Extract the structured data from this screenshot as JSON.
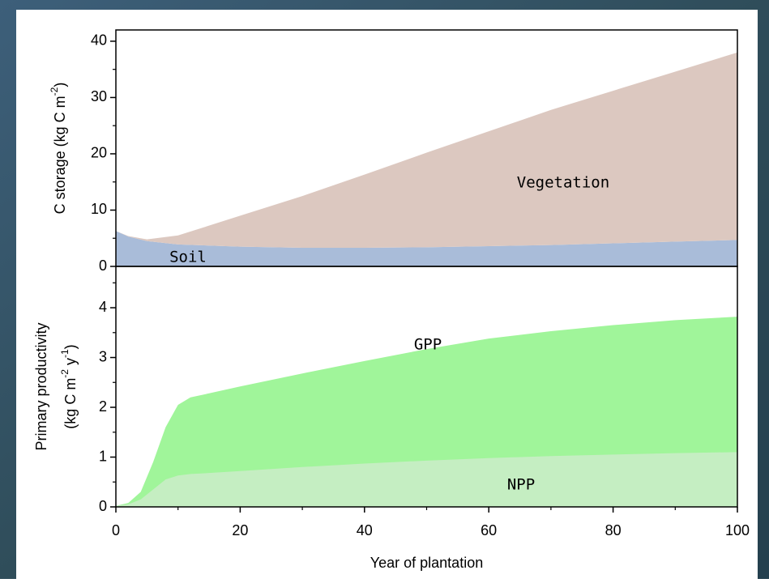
{
  "chart_data": [
    {
      "type": "area",
      "stacked": true,
      "ylabel": [
        "C storage (kg C m",
        "-2",
        ")"
      ],
      "x": [
        0,
        2,
        5,
        10,
        20,
        30,
        40,
        50,
        60,
        70,
        80,
        90,
        100
      ],
      "series": [
        {
          "name": "Soil",
          "color": "#a9bcd9",
          "values": [
            6.3,
            5.3,
            4.5,
            3.9,
            3.5,
            3.3,
            3.3,
            3.4,
            3.6,
            3.8,
            4.1,
            4.4,
            4.7
          ]
        },
        {
          "name": "Vegetation",
          "color": "#dcc8c0",
          "values": [
            0,
            0.1,
            0.3,
            1.6,
            5.5,
            9.2,
            13.0,
            16.8,
            20.4,
            24.0,
            27.1,
            30.2,
            33.3
          ]
        }
      ],
      "xlim": [
        0,
        100
      ],
      "ylim": [
        0,
        42
      ],
      "yticks": [
        0,
        10,
        20,
        30,
        40
      ],
      "yminor": [
        5,
        15,
        25,
        35
      ]
    },
    {
      "type": "area",
      "stacked": false,
      "ylabel": [
        "Primary productivity"
      ],
      "ylabel2": [
        "(kg C m",
        "-2",
        " y",
        "-1",
        ")"
      ],
      "xlabel": "Year of plantation",
      "x": [
        0,
        2,
        4,
        6,
        8,
        10,
        12,
        15,
        20,
        30,
        40,
        50,
        60,
        70,
        80,
        90,
        100
      ],
      "series": [
        {
          "name": "GPP",
          "color": "#a0f59a",
          "values": [
            0.02,
            0.08,
            0.3,
            0.9,
            1.6,
            2.05,
            2.2,
            2.28,
            2.42,
            2.68,
            2.93,
            3.17,
            3.38,
            3.53,
            3.65,
            3.75,
            3.82
          ]
        },
        {
          "name": "NPP",
          "color": "#c5eec2",
          "values": [
            0.02,
            0.05,
            0.15,
            0.35,
            0.55,
            0.63,
            0.66,
            0.68,
            0.72,
            0.8,
            0.87,
            0.93,
            0.98,
            1.02,
            1.05,
            1.08,
            1.1
          ]
        }
      ],
      "xlim": [
        0,
        100
      ],
      "xticks": [
        0,
        20,
        40,
        60,
        80,
        100
      ],
      "xminor": [
        10,
        30,
        50,
        70,
        90
      ],
      "ylim": [
        0,
        4.83
      ],
      "yticks": [
        0,
        1,
        2,
        3,
        4
      ],
      "yminor": [
        0.5,
        1.5,
        2.5,
        3.5,
        4.5
      ]
    }
  ]
}
